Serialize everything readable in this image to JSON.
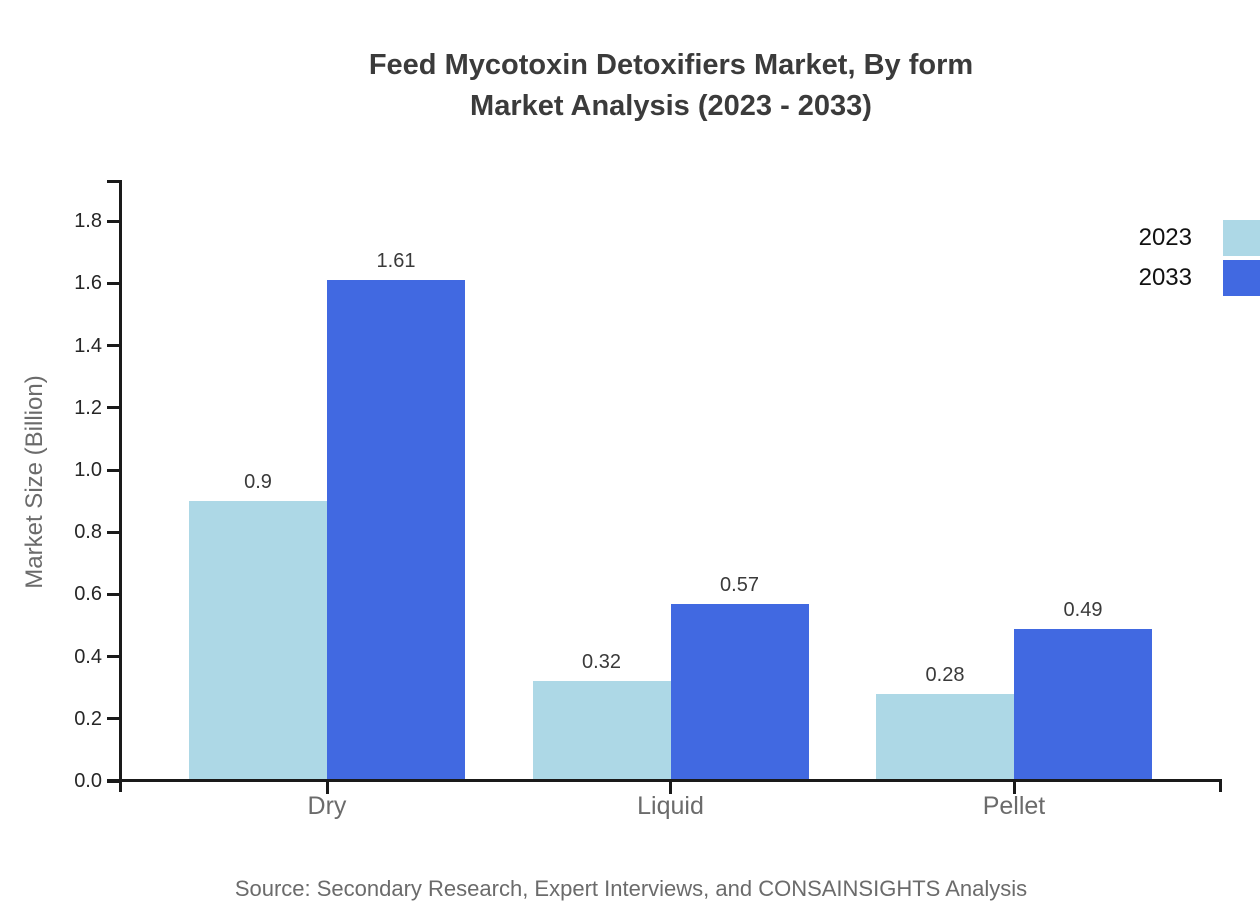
{
  "title": {
    "line1": "Feed Mycotoxin Detoxifiers Market, By form",
    "line2": "Market Analysis (2023 - 2033)"
  },
  "source": "Source: Secondary Research, Expert Interviews, and CONSAINSIGHTS Analysis",
  "chart_data": {
    "type": "bar",
    "categories": [
      "Dry",
      "Liquid",
      "Pellet"
    ],
    "series": [
      {
        "name": "2023",
        "color": "#ADD8E6",
        "values": [
          0.9,
          0.32,
          0.28
        ]
      },
      {
        "name": "2033",
        "color": "#4169E1",
        "values": [
          1.61,
          0.57,
          0.49
        ]
      }
    ],
    "value_labels": [
      [
        "0.9",
        "1.61"
      ],
      [
        "0.32",
        "0.57"
      ],
      [
        "0.28",
        "0.49"
      ]
    ],
    "title": "Feed Mycotoxin Detoxifiers Market, By form Market Analysis (2023 - 2033)",
    "xlabel": "",
    "ylabel": "Market Size (Billion)",
    "ylim": [
      0,
      1.93
    ],
    "yticks": [
      0.0,
      0.2,
      0.4,
      0.6,
      0.8,
      1.0,
      1.2,
      1.4,
      1.6,
      1.8
    ],
    "ytick_labels": [
      "0.0",
      "0.2",
      "0.4",
      "0.6",
      "0.8",
      "1.0",
      "1.2",
      "1.4",
      "1.6",
      "1.8"
    ],
    "grid": false,
    "legend_position": "top-right",
    "axis_color": "#1a1a1a"
  }
}
